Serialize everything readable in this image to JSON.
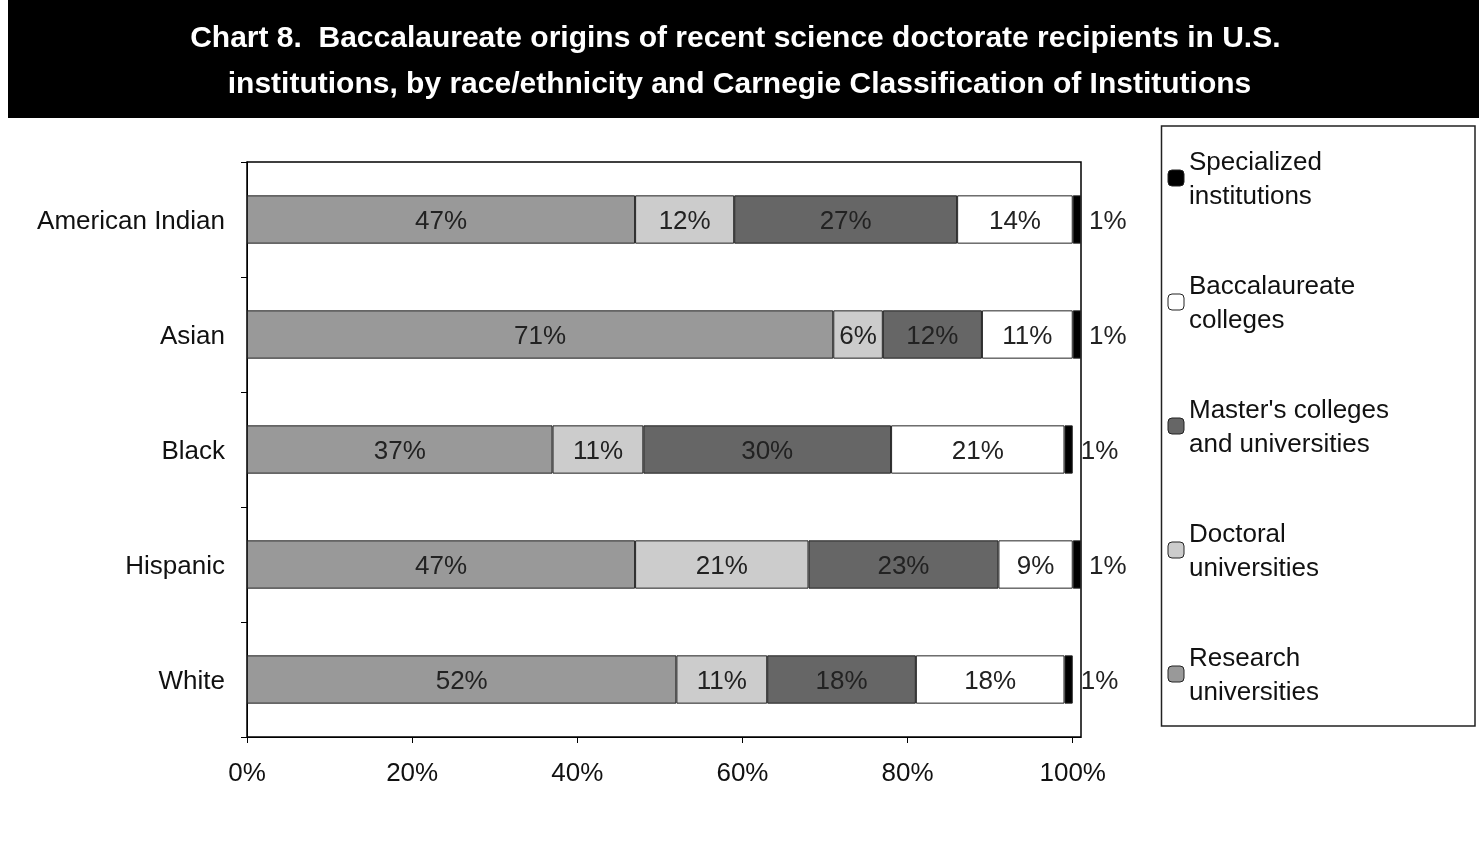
{
  "chart_data": {
    "type": "bar",
    "orientation": "horizontal",
    "stacked": true,
    "title": "Chart 8.  Baccalaureate origins of recent science doctorate recipients in U.S. institutions, by race/ethnicity and Carnegie Classification of Institutions",
    "categories": [
      "American Indian",
      "Asian",
      "Black",
      "Hispanic",
      "White"
    ],
    "series": [
      {
        "name": "Research universities",
        "color": "#999999",
        "values": [
          47,
          71,
          37,
          47,
          52
        ],
        "value_labels": [
          "47%",
          "71%",
          "37%",
          "47%",
          "52%"
        ]
      },
      {
        "name": "Doctoral universities",
        "color": "#cccccc",
        "values": [
          12,
          6,
          11,
          21,
          11
        ],
        "value_labels": [
          "12%",
          "6%",
          "11%",
          "21%",
          "11%"
        ]
      },
      {
        "name": "Master's colleges and universities",
        "color": "#666666",
        "values": [
          27,
          12,
          30,
          23,
          18
        ],
        "value_labels": [
          "27%",
          "12%",
          "30%",
          "23%",
          "18%"
        ]
      },
      {
        "name": "Baccalaureate colleges",
        "color": "#ffffff",
        "values": [
          14,
          11,
          21,
          9,
          18
        ],
        "value_labels": [
          "14%",
          "11%",
          "21%",
          "9%",
          "18%"
        ]
      },
      {
        "name": "Specialized institutions",
        "color": "#000000",
        "values": [
          1,
          1,
          1,
          1,
          1
        ],
        "value_labels": [
          "1%",
          "1%",
          "1%",
          "1%",
          "1%"
        ]
      }
    ],
    "xlim": [
      0,
      101
    ],
    "xticks": [
      {
        "value": 0,
        "label": "0%"
      },
      {
        "value": 20,
        "label": "20%"
      },
      {
        "value": 40,
        "label": "40%"
      },
      {
        "value": 60,
        "label": "60%"
      },
      {
        "value": 80,
        "label": "80%"
      },
      {
        "value": 100,
        "label": "100%"
      }
    ],
    "grid": false,
    "legend": "right"
  }
}
